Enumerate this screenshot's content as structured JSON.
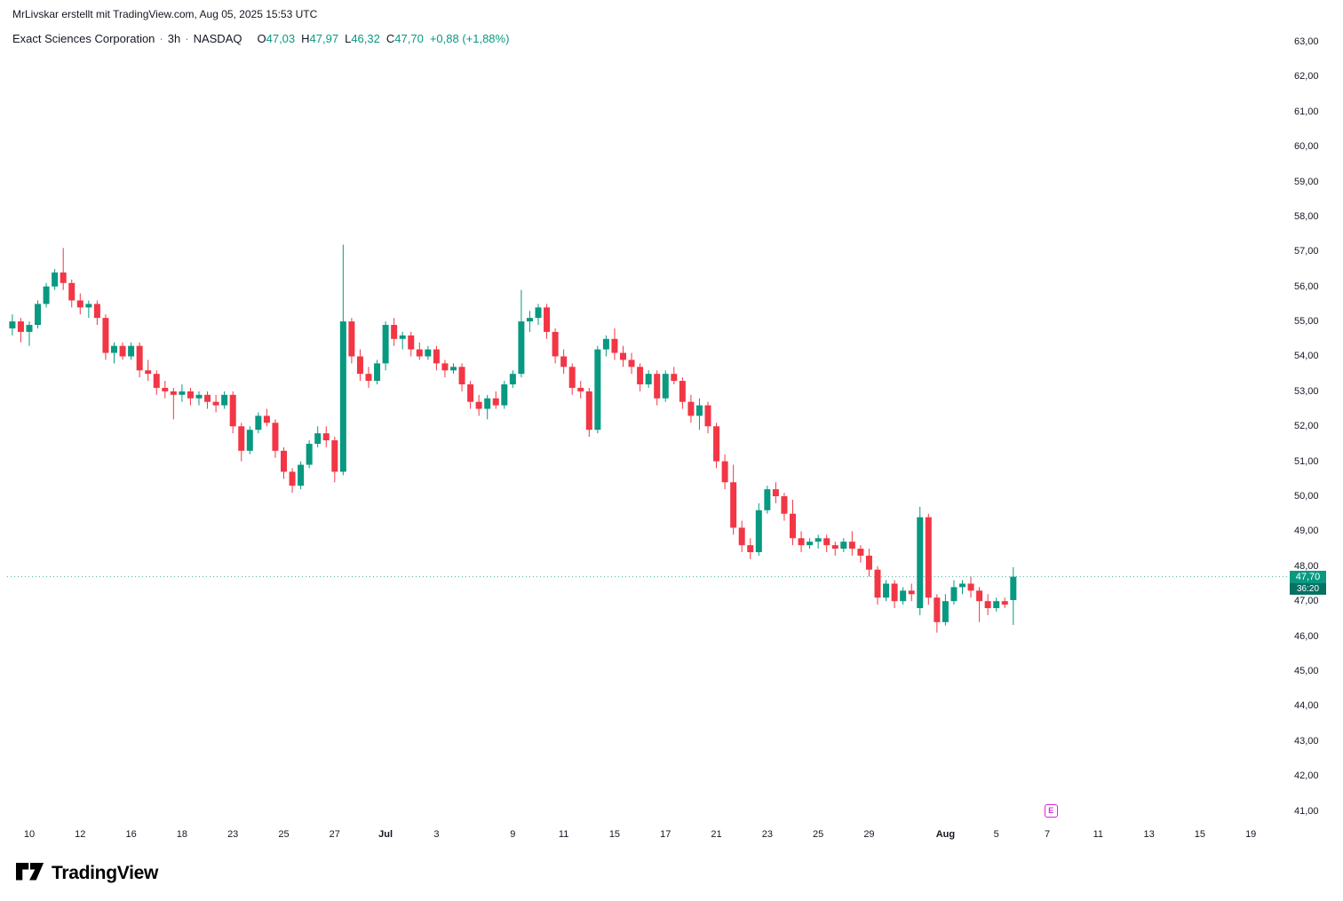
{
  "attribution": "MrLivskar erstellt mit TradingView.com, Aug 05, 2025 15:53 UTC",
  "symbol": {
    "name": "Exact Sciences Corporation",
    "sep": "·",
    "interval": "3h",
    "exchange": "NASDAQ",
    "o_label": "O",
    "h_label": "H",
    "l_label": "L",
    "c_label": "C",
    "o_value": "47,03",
    "h_value": "47,97",
    "l_value": "46,32",
    "c_value": "47,70",
    "change": "+0,88 (+1,88%)"
  },
  "logo": {
    "text": "TradingView"
  },
  "chart_data": {
    "type": "candlestick",
    "title": "Exact Sciences Corporation · 3h · NASDAQ",
    "interval": "3h",
    "x_unit": "3h bars, Jun 9 – Aug 5 2025",
    "ylim": [
      41,
      63
    ],
    "grid": false,
    "colors": {
      "up": "#089981",
      "down": "#f23645",
      "marker": "#e022e0",
      "price_line": "#089981"
    },
    "y_labels": [
      "63,00",
      "62,00",
      "61,00",
      "60,00",
      "59,00",
      "58,00",
      "57,00",
      "56,00",
      "55,00",
      "54,00",
      "53,00",
      "52,00",
      "51,00",
      "50,00",
      "49,00",
      "48,00",
      "47,00",
      "46,00",
      "45,00",
      "44,00",
      "43,00",
      "42,00",
      "41,00"
    ],
    "x_labels": [
      {
        "t": "10",
        "i": 2
      },
      {
        "t": "12",
        "i": 8
      },
      {
        "t": "16",
        "i": 14
      },
      {
        "t": "18",
        "i": 20
      },
      {
        "t": "23",
        "i": 26
      },
      {
        "t": "25",
        "i": 32
      },
      {
        "t": "27",
        "i": 38
      },
      {
        "t": "Jul",
        "i": 44,
        "bold": true
      },
      {
        "t": "3",
        "i": 50
      },
      {
        "t": "9",
        "i": 59
      },
      {
        "t": "11",
        "i": 65
      },
      {
        "t": "15",
        "i": 71
      },
      {
        "t": "17",
        "i": 77
      },
      {
        "t": "21",
        "i": 83
      },
      {
        "t": "23",
        "i": 89
      },
      {
        "t": "25",
        "i": 95
      },
      {
        "t": "29",
        "i": 101
      },
      {
        "t": "Aug",
        "i": 110,
        "bold": true
      },
      {
        "t": "5",
        "i": 116
      },
      {
        "t": "7",
        "i": 122
      },
      {
        "t": "11",
        "i": 128
      },
      {
        "t": "13",
        "i": 134
      },
      {
        "t": "15",
        "i": 140
      },
      {
        "t": "19",
        "i": 146
      }
    ],
    "price_line": {
      "price": 47.7,
      "label": "47,70",
      "countdown": "36:20"
    },
    "earnings_marker": {
      "text": "E",
      "index": 122.5
    },
    "candles": [
      [
        54.8,
        55.2,
        54.6,
        55.0
      ],
      [
        55.0,
        55.1,
        54.4,
        54.7
      ],
      [
        54.7,
        55.0,
        54.3,
        54.9
      ],
      [
        54.9,
        55.6,
        54.8,
        55.5
      ],
      [
        55.5,
        56.1,
        55.4,
        56.0
      ],
      [
        56.0,
        56.5,
        55.9,
        56.4
      ],
      [
        56.4,
        57.1,
        55.9,
        56.1
      ],
      [
        56.1,
        56.2,
        55.4,
        55.6
      ],
      [
        55.6,
        55.8,
        55.2,
        55.4
      ],
      [
        55.4,
        55.6,
        55.1,
        55.5
      ],
      [
        55.5,
        55.6,
        54.9,
        55.1
      ],
      [
        55.1,
        55.2,
        53.9,
        54.1
      ],
      [
        54.1,
        54.4,
        53.8,
        54.3
      ],
      [
        54.3,
        54.4,
        53.9,
        54.0
      ],
      [
        54.0,
        54.4,
        53.9,
        54.3
      ],
      [
        54.3,
        54.4,
        53.4,
        53.6
      ],
      [
        53.6,
        53.9,
        53.3,
        53.5
      ],
      [
        53.5,
        53.6,
        52.9,
        53.1
      ],
      [
        53.1,
        53.3,
        52.8,
        53.0
      ],
      [
        53.0,
        53.1,
        52.2,
        52.9
      ],
      [
        52.9,
        53.2,
        52.7,
        53.0
      ],
      [
        53.0,
        53.1,
        52.6,
        52.8
      ],
      [
        52.8,
        53.0,
        52.6,
        52.9
      ],
      [
        52.9,
        53.0,
        52.5,
        52.7
      ],
      [
        52.7,
        52.9,
        52.4,
        52.6
      ],
      [
        52.6,
        53.0,
        52.5,
        52.9
      ],
      [
        52.9,
        53.0,
        51.8,
        52.0
      ],
      [
        52.0,
        52.1,
        51.0,
        51.3
      ],
      [
        51.3,
        52.0,
        51.2,
        51.9
      ],
      [
        51.9,
        52.4,
        51.8,
        52.3
      ],
      [
        52.3,
        52.5,
        52.0,
        52.1
      ],
      [
        52.1,
        52.2,
        51.1,
        51.3
      ],
      [
        51.3,
        51.4,
        50.5,
        50.7
      ],
      [
        50.7,
        50.8,
        50.1,
        50.3
      ],
      [
        50.3,
        51.0,
        50.2,
        50.9
      ],
      [
        50.9,
        51.6,
        50.8,
        51.5
      ],
      [
        51.5,
        52.0,
        51.4,
        51.8
      ],
      [
        51.8,
        52.0,
        51.4,
        51.6
      ],
      [
        51.6,
        51.7,
        50.4,
        50.7
      ],
      [
        50.7,
        57.2,
        50.6,
        55.0
      ],
      [
        55.0,
        55.1,
        53.8,
        54.0
      ],
      [
        54.0,
        54.2,
        53.3,
        53.5
      ],
      [
        53.5,
        53.7,
        53.1,
        53.3
      ],
      [
        53.3,
        53.9,
        53.2,
        53.8
      ],
      [
        53.8,
        55.0,
        53.6,
        54.9
      ],
      [
        54.9,
        55.1,
        54.3,
        54.5
      ],
      [
        54.5,
        54.7,
        54.2,
        54.6
      ],
      [
        54.6,
        54.7,
        54.0,
        54.2
      ],
      [
        54.2,
        54.4,
        53.9,
        54.0
      ],
      [
        54.0,
        54.3,
        53.9,
        54.2
      ],
      [
        54.2,
        54.3,
        53.6,
        53.8
      ],
      [
        53.8,
        53.9,
        53.4,
        53.6
      ],
      [
        53.6,
        53.8,
        53.5,
        53.7
      ],
      [
        53.7,
        53.8,
        53.0,
        53.2
      ],
      [
        53.2,
        53.3,
        52.5,
        52.7
      ],
      [
        52.7,
        52.9,
        52.3,
        52.5
      ],
      [
        52.5,
        52.9,
        52.2,
        52.8
      ],
      [
        52.8,
        53.0,
        52.5,
        52.6
      ],
      [
        52.6,
        53.3,
        52.5,
        53.2
      ],
      [
        53.2,
        53.6,
        53.1,
        53.5
      ],
      [
        53.5,
        55.9,
        53.4,
        55.0
      ],
      [
        55.0,
        55.3,
        54.7,
        55.1
      ],
      [
        55.1,
        55.5,
        54.9,
        55.4
      ],
      [
        55.4,
        55.5,
        54.5,
        54.7
      ],
      [
        54.7,
        54.8,
        53.8,
        54.0
      ],
      [
        54.0,
        54.2,
        53.5,
        53.7
      ],
      [
        53.7,
        53.8,
        52.9,
        53.1
      ],
      [
        53.1,
        53.3,
        52.8,
        53.0
      ],
      [
        53.0,
        53.1,
        51.7,
        51.9
      ],
      [
        51.9,
        54.3,
        51.8,
        54.2
      ],
      [
        54.2,
        54.6,
        54.0,
        54.5
      ],
      [
        54.5,
        54.8,
        53.9,
        54.1
      ],
      [
        54.1,
        54.3,
        53.7,
        53.9
      ],
      [
        53.9,
        54.1,
        53.5,
        53.7
      ],
      [
        53.7,
        53.8,
        53.0,
        53.2
      ],
      [
        53.2,
        53.6,
        53.1,
        53.5
      ],
      [
        53.5,
        53.6,
        52.6,
        52.8
      ],
      [
        52.8,
        53.6,
        52.7,
        53.5
      ],
      [
        53.5,
        53.7,
        53.2,
        53.3
      ],
      [
        53.3,
        53.4,
        52.5,
        52.7
      ],
      [
        52.7,
        52.9,
        52.1,
        52.3
      ],
      [
        52.3,
        52.8,
        51.9,
        52.6
      ],
      [
        52.6,
        52.7,
        51.8,
        52.0
      ],
      [
        52.0,
        52.1,
        50.8,
        51.0
      ],
      [
        51.0,
        51.2,
        50.2,
        50.4
      ],
      [
        50.4,
        50.9,
        48.9,
        49.1
      ],
      [
        49.1,
        49.3,
        48.4,
        48.6
      ],
      [
        48.6,
        48.8,
        48.2,
        48.4
      ],
      [
        48.4,
        49.8,
        48.3,
        49.6
      ],
      [
        49.6,
        50.3,
        49.5,
        50.2
      ],
      [
        50.2,
        50.4,
        49.8,
        50.0
      ],
      [
        50.0,
        50.1,
        49.3,
        49.5
      ],
      [
        49.5,
        49.9,
        48.6,
        48.8
      ],
      [
        48.8,
        49.0,
        48.4,
        48.6
      ],
      [
        48.6,
        48.8,
        48.5,
        48.7
      ],
      [
        48.7,
        48.9,
        48.5,
        48.8
      ],
      [
        48.8,
        48.9,
        48.4,
        48.6
      ],
      [
        48.6,
        48.7,
        48.3,
        48.5
      ],
      [
        48.5,
        48.8,
        48.4,
        48.7
      ],
      [
        48.7,
        49.0,
        48.3,
        48.5
      ],
      [
        48.5,
        48.6,
        48.1,
        48.3
      ],
      [
        48.3,
        48.5,
        47.7,
        47.9
      ],
      [
        47.9,
        48.0,
        46.9,
        47.1
      ],
      [
        47.1,
        47.6,
        47.0,
        47.5
      ],
      [
        47.5,
        47.6,
        46.8,
        47.0
      ],
      [
        47.0,
        47.4,
        46.9,
        47.3
      ],
      [
        47.3,
        47.5,
        47.0,
        47.2
      ],
      [
        46.8,
        49.7,
        46.6,
        49.4
      ],
      [
        49.4,
        49.5,
        46.9,
        47.1
      ],
      [
        47.1,
        47.2,
        46.1,
        46.4
      ],
      [
        46.4,
        47.2,
        46.3,
        47.0
      ],
      [
        47.0,
        47.6,
        46.9,
        47.4
      ],
      [
        47.4,
        47.6,
        47.2,
        47.5
      ],
      [
        47.5,
        47.7,
        47.1,
        47.3
      ],
      [
        47.3,
        47.4,
        46.4,
        47.0
      ],
      [
        47.0,
        47.2,
        46.6,
        46.8
      ],
      [
        46.8,
        47.1,
        46.7,
        47.0
      ],
      [
        47.0,
        47.1,
        46.8,
        46.9
      ],
      [
        47.03,
        47.97,
        46.32,
        47.7
      ]
    ]
  }
}
